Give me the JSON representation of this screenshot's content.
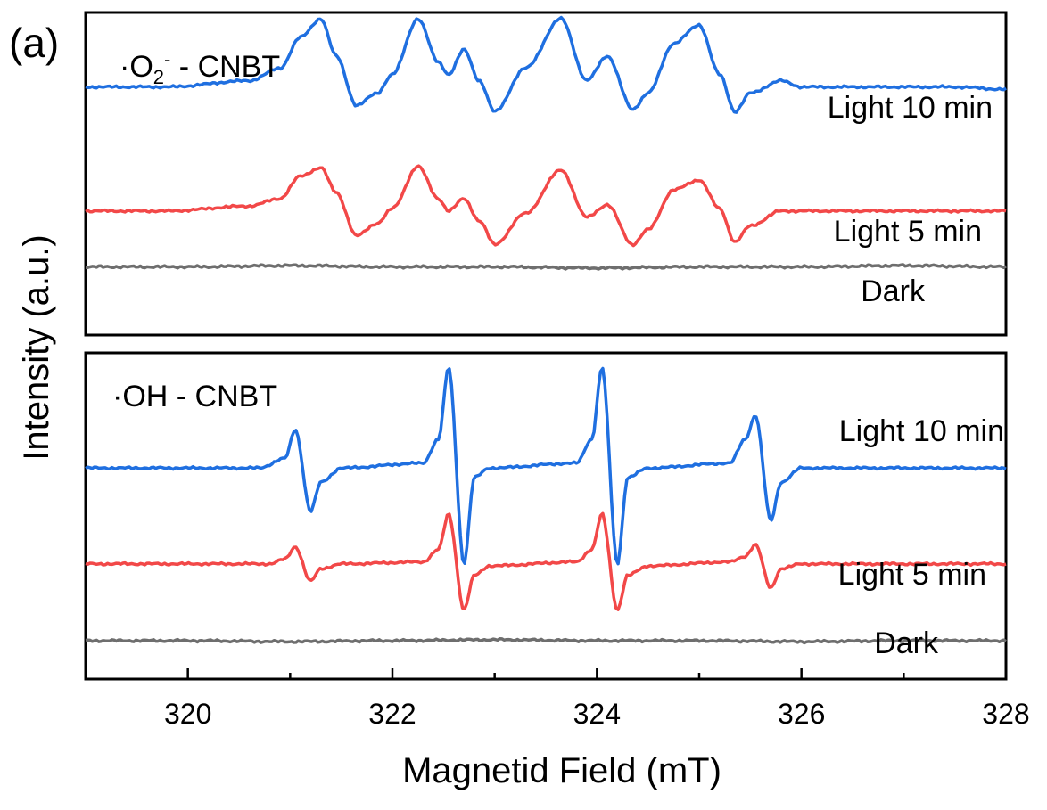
{
  "panel_label": "(a)",
  "colors": {
    "light10": "#1f6fe0",
    "light5": "#f24848",
    "dark": "#6e6e6e",
    "axis": "#000000"
  },
  "chart_data": {
    "type": "line",
    "xlabel": "Magnetid Field (mT)",
    "ylabel": "Intensity (a.u.)",
    "xlim": [
      319,
      328
    ],
    "x_ticks": [
      320,
      322,
      324,
      326,
      328
    ],
    "panels": [
      {
        "title_prefix": "·O",
        "title_sub": "2",
        "title_sup": "-",
        "title_suffix": " - CNBT",
        "ylim": [
          -1.0,
          1.6
        ],
        "series": [
          {
            "name": "Light 10 min",
            "color_key": "light10",
            "x": [
              319.0,
              319.8,
              320.6,
              320.9,
              321.1,
              321.3,
              321.45,
              321.65,
              321.85,
              322.0,
              322.25,
              322.45,
              322.55,
              322.7,
              322.85,
              323.0,
              323.3,
              323.65,
              323.9,
              324.1,
              324.35,
              324.5,
              324.75,
              325.0,
              325.2,
              325.35,
              325.5,
              325.8,
              326.0,
              326.5,
              327.0,
              327.5,
              328.0
            ],
            "y": [
              1.0,
              1.0,
              1.05,
              1.15,
              1.4,
              1.55,
              1.25,
              0.85,
              0.95,
              1.1,
              1.55,
              1.2,
              1.1,
              1.3,
              1.05,
              0.8,
              1.15,
              1.55,
              1.05,
              1.25,
              0.82,
              0.95,
              1.35,
              1.5,
              1.1,
              0.8,
              0.95,
              1.05,
              1.0,
              1.0,
              1.0,
              1.0,
              0.98
            ]
          },
          {
            "name": "Light 5 min",
            "color_key": "light5",
            "x": [
              319.0,
              319.8,
              320.6,
              320.9,
              321.1,
              321.3,
              321.45,
              321.65,
              321.85,
              322.0,
              322.25,
              322.45,
              322.55,
              322.7,
              322.85,
              323.0,
              323.3,
              323.65,
              323.9,
              324.1,
              324.35,
              324.5,
              324.75,
              325.0,
              325.2,
              325.35,
              325.5,
              325.8,
              326.0,
              326.5,
              327.0,
              327.5,
              328.0
            ],
            "y": [
              0.0,
              0.0,
              0.04,
              0.1,
              0.28,
              0.35,
              0.15,
              -0.2,
              -0.1,
              0.02,
              0.36,
              0.1,
              0.0,
              0.1,
              -0.08,
              -0.27,
              -0.02,
              0.33,
              -0.05,
              0.05,
              -0.27,
              -0.15,
              0.17,
              0.25,
              0.02,
              -0.25,
              -0.12,
              0.0,
              0.0,
              0.0,
              0.0,
              0.0,
              0.0
            ]
          },
          {
            "name": "Dark",
            "color_key": "dark",
            "x": [
              319.0,
              320.0,
              321.0,
              322.0,
              323.0,
              324.0,
              325.0,
              326.0,
              327.0,
              328.0
            ],
            "y": [
              -0.45,
              -0.45,
              -0.44,
              -0.45,
              -0.45,
              -0.46,
              -0.45,
              -0.45,
              -0.44,
              -0.45
            ]
          }
        ]
      },
      {
        "title_prefix": "·OH - CNBT",
        "title_sub": "",
        "title_sup": "",
        "title_suffix": "",
        "ylim": [
          -1.2,
          2.2
        ],
        "series": [
          {
            "name": "Light 10 min",
            "color_key": "light10",
            "x": [
              319.0,
              320.7,
              320.95,
              321.05,
              321.2,
              321.3,
              321.5,
              322.3,
              322.45,
              322.55,
              322.7,
              322.8,
              322.95,
              323.8,
              323.95,
              324.05,
              324.2,
              324.3,
              324.5,
              325.3,
              325.45,
              325.55,
              325.7,
              325.8,
              326.0,
              328.0
            ],
            "y": [
              1.0,
              1.0,
              1.1,
              1.4,
              0.55,
              0.85,
              1.0,
              1.05,
              1.3,
              2.05,
              0.0,
              0.9,
              1.0,
              1.05,
              1.3,
              2.05,
              0.0,
              0.9,
              1.0,
              1.05,
              1.3,
              1.55,
              0.45,
              0.85,
              1.0,
              1.0
            ]
          },
          {
            "name": "Light 5 min",
            "color_key": "light5",
            "x": [
              319.0,
              320.8,
              320.95,
              321.05,
              321.2,
              321.3,
              321.5,
              322.3,
              322.45,
              322.55,
              322.7,
              322.8,
              322.95,
              323.8,
              323.95,
              324.05,
              324.2,
              324.3,
              324.5,
              325.3,
              325.45,
              325.55,
              325.7,
              325.8,
              326.0,
              328.0
            ],
            "y": [
              0.0,
              0.0,
              0.05,
              0.18,
              -0.18,
              -0.05,
              0.0,
              0.02,
              0.15,
              0.52,
              -0.48,
              -0.12,
              -0.02,
              0.02,
              0.15,
              0.52,
              -0.48,
              -0.12,
              -0.02,
              0.02,
              0.08,
              0.2,
              -0.25,
              -0.05,
              0.0,
              0.0
            ]
          },
          {
            "name": "Dark",
            "color_key": "dark",
            "x": [
              319.0,
              320.0,
              321.0,
              322.0,
              323.0,
              324.0,
              325.0,
              326.0,
              327.0,
              328.0
            ],
            "y": [
              -0.8,
              -0.8,
              -0.81,
              -0.8,
              -0.79,
              -0.8,
              -0.8,
              -0.81,
              -0.8,
              -0.8
            ]
          }
        ]
      }
    ]
  }
}
